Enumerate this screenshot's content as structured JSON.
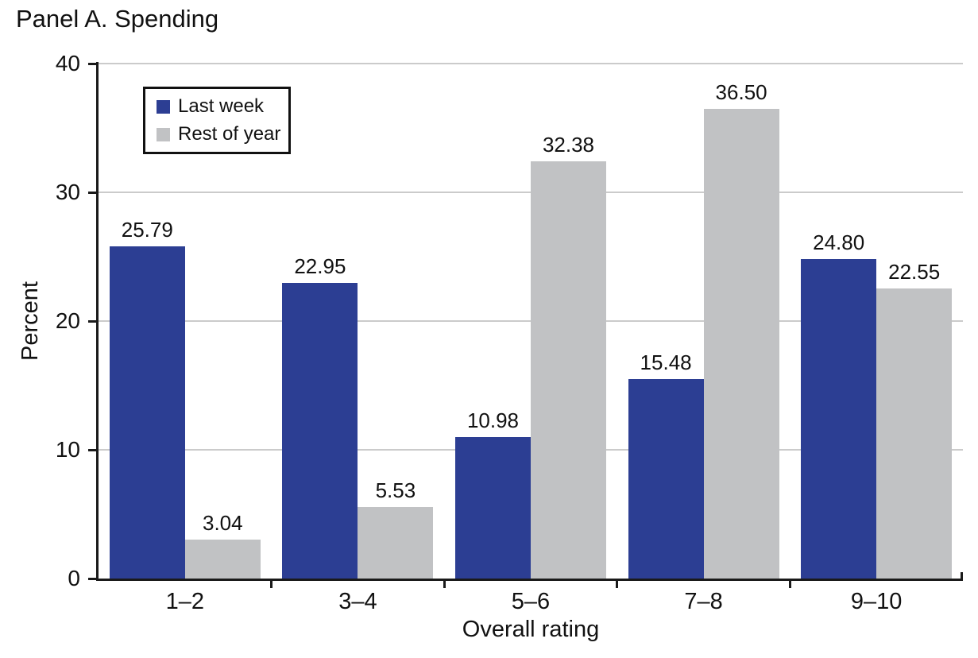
{
  "chart_data": {
    "type": "bar",
    "title": "Panel A. Spending",
    "xlabel": "Overall rating",
    "ylabel": "Percent",
    "categories": [
      "1–2",
      "3–4",
      "5–6",
      "7–8",
      "9–10"
    ],
    "series": [
      {
        "name": "Last week",
        "color": "#2c3e93",
        "values": [
          25.79,
          22.95,
          10.98,
          15.48,
          24.8
        ],
        "labels": [
          "25.79",
          "22.95",
          "10.98",
          "15.48",
          "24.80"
        ]
      },
      {
        "name": "Rest of year",
        "color": "#c1c2c4",
        "values": [
          3.04,
          5.53,
          32.38,
          36.5,
          22.55
        ],
        "labels": [
          "3.04",
          "5.53",
          "32.38",
          "36.50",
          "22.55"
        ]
      }
    ],
    "ylim": [
      0,
      40
    ],
    "yticks": [
      0,
      10,
      20,
      30,
      40
    ],
    "grid": "horizontal",
    "legend_position": "upper-left-inside",
    "axis_color": "#1a1a1a",
    "grid_color": "#cbcbcb",
    "background_color": "#ffffff"
  }
}
